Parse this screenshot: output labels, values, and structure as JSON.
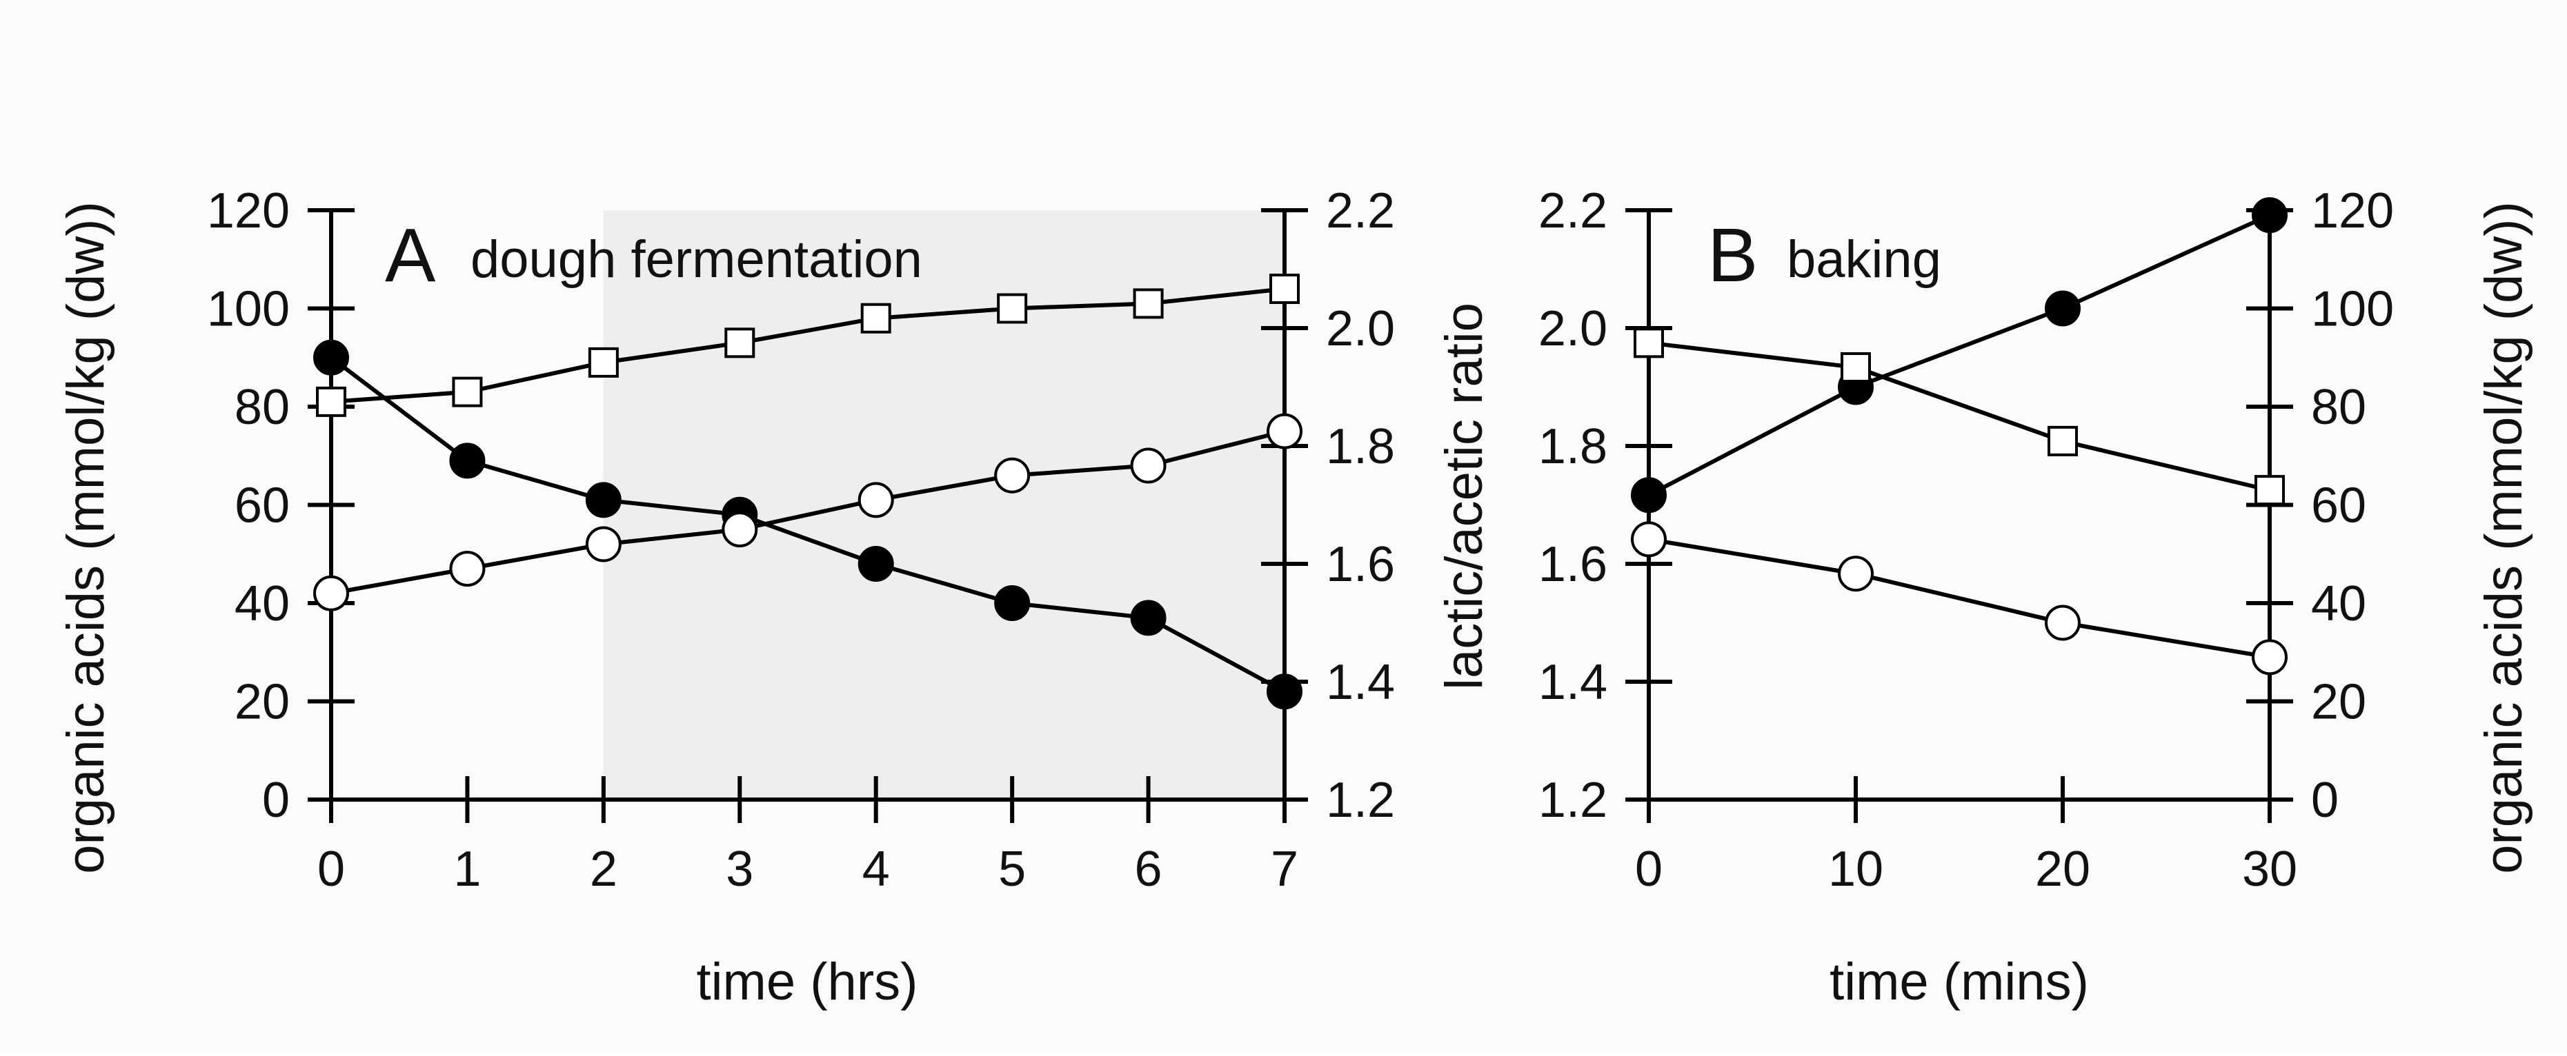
{
  "chart_data": [
    {
      "panel_letter": "A",
      "title": "dough fermentation",
      "type": "line",
      "xlabel": "time (hrs)",
      "ylabel_left": "organic acids (mmol/kg (dw))",
      "ylabel_right": "lactic/acetic ratio",
      "x": [
        0,
        1,
        2,
        3,
        4,
        5,
        6,
        7
      ],
      "xlim": [
        0,
        7
      ],
      "x_ticks": [
        0,
        1,
        2,
        3,
        4,
        5,
        6,
        7
      ],
      "ylim_left": [
        0,
        120
      ],
      "y_ticks_left": [
        0,
        20,
        40,
        60,
        80,
        100,
        120
      ],
      "ylim_right": [
        1.2,
        2.2
      ],
      "y_ticks_right": [
        "1.2",
        "1.4",
        "1.6",
        "1.8",
        "2.0",
        "2.2"
      ],
      "shaded_region_x": [
        2,
        7
      ],
      "series": [
        {
          "name": "filled circles",
          "marker": "filled-circle",
          "axis": "left",
          "values": [
            90,
            69,
            61,
            58,
            48,
            40,
            37,
            22
          ]
        },
        {
          "name": "open circles",
          "marker": "open-circle",
          "axis": "left",
          "values": [
            42,
            47,
            52,
            55,
            61,
            66,
            68,
            75
          ]
        },
        {
          "name": "open squares",
          "marker": "open-square",
          "axis": "left",
          "values": [
            81,
            83,
            89,
            93,
            98,
            100,
            101,
            104
          ]
        }
      ]
    },
    {
      "panel_letter": "B",
      "title": "baking",
      "type": "line",
      "xlabel": "time (mins)",
      "ylabel_left": "",
      "ylabel_right": "organic acids (mmol/kg (dw))",
      "x": [
        0,
        10,
        20,
        30
      ],
      "xlim": [
        0,
        30
      ],
      "x_ticks": [
        0,
        10,
        20,
        30
      ],
      "ylim_left": [
        1.2,
        2.2
      ],
      "y_ticks_left": [
        "1.2",
        "1.4",
        "1.6",
        "1.8",
        "2.0",
        "2.2"
      ],
      "ylim_right": [
        0,
        120
      ],
      "y_ticks_right": [
        0,
        20,
        40,
        60,
        80,
        100,
        120
      ],
      "series": [
        {
          "name": "filled circles",
          "marker": "filled-circle",
          "axis": "right",
          "values": [
            62,
            84,
            100,
            119
          ]
        },
        {
          "name": "open squares",
          "marker": "open-square",
          "axis": "right",
          "values": [
            93,
            88,
            73,
            63
          ]
        },
        {
          "name": "open circles",
          "marker": "open-circle",
          "axis": "right",
          "values": [
            53,
            46,
            36,
            29
          ]
        }
      ]
    }
  ]
}
